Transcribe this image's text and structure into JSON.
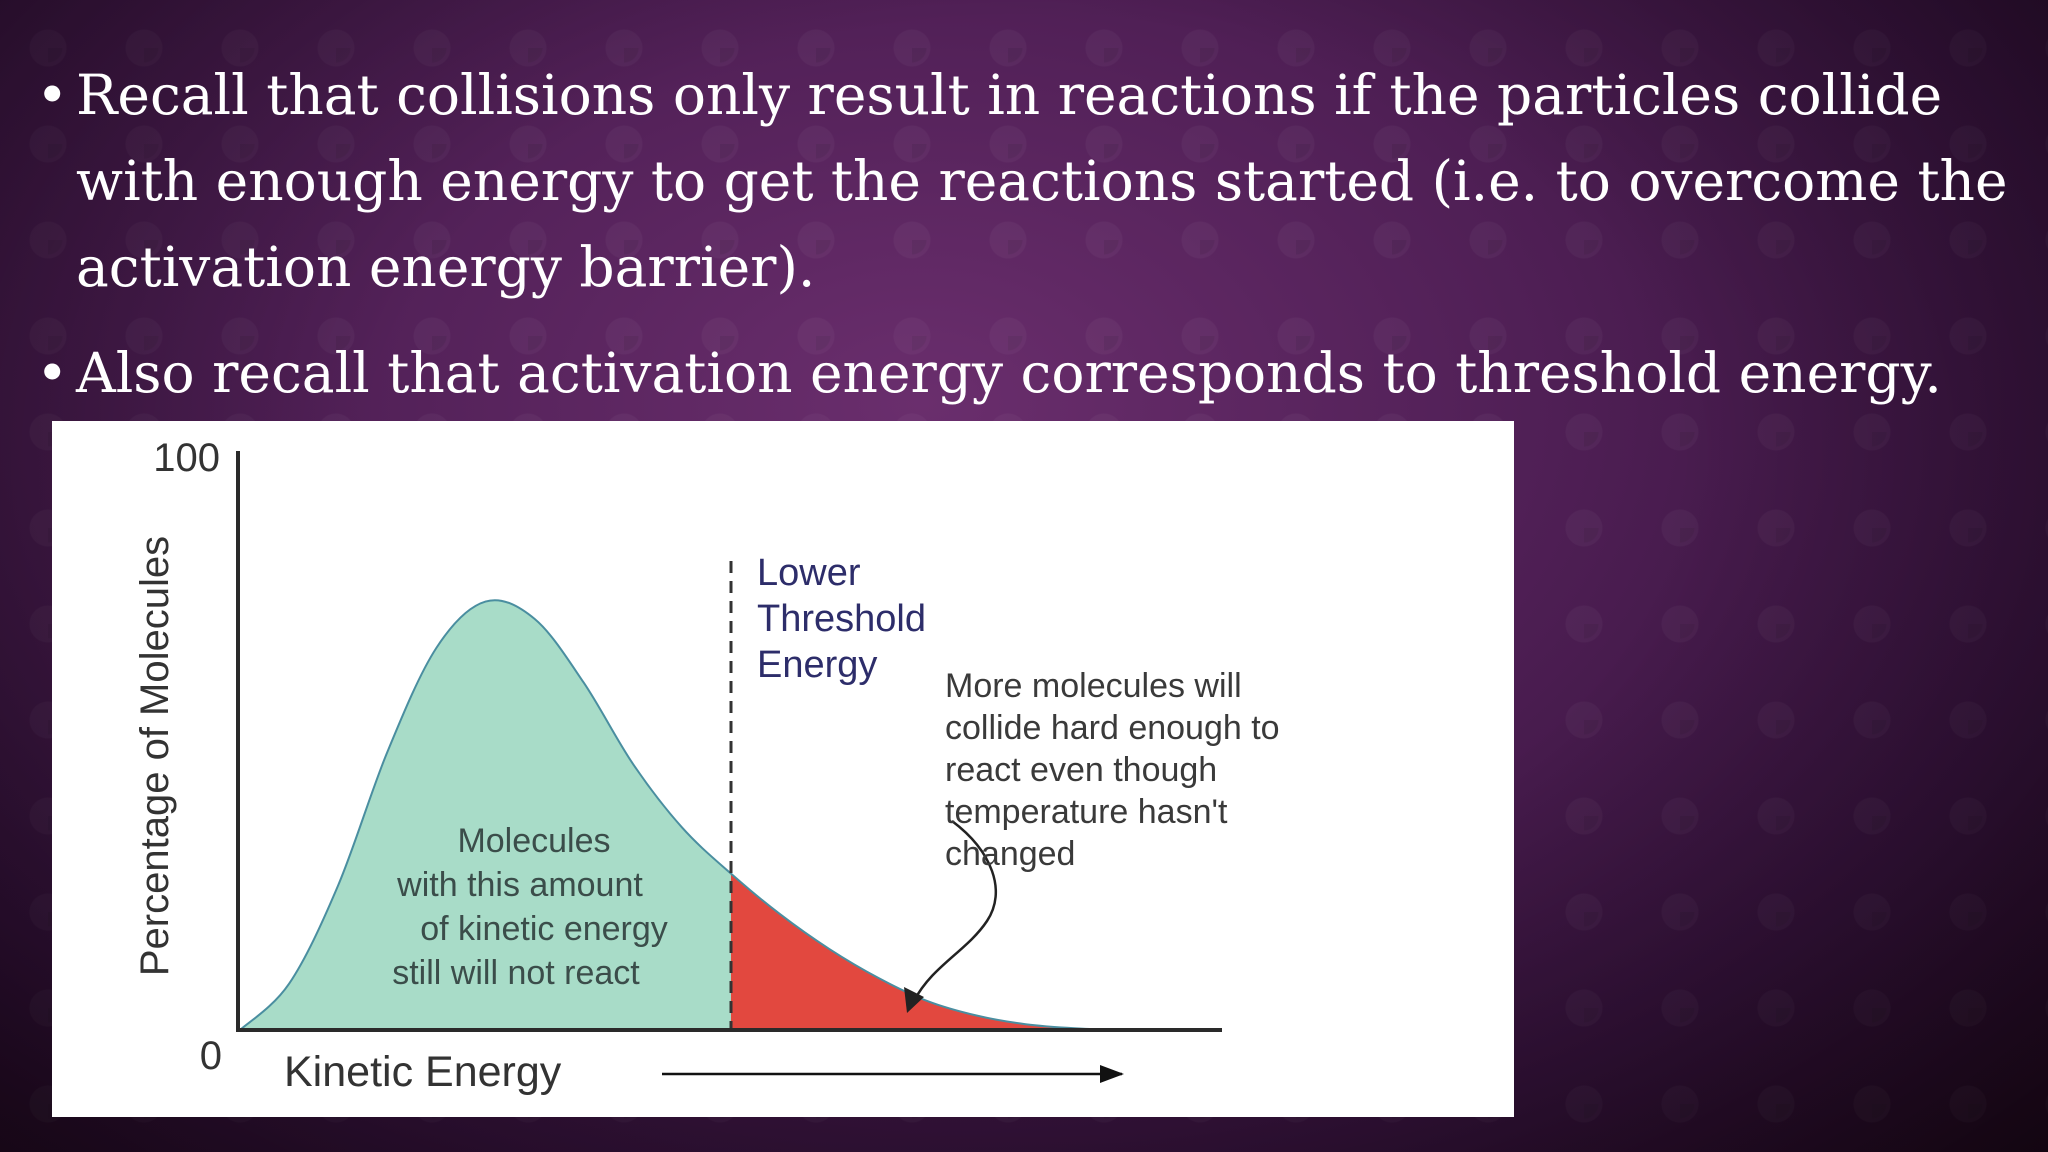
{
  "slide": {
    "bullets": [
      "Recall that collisions only result in reactions if the particles collide with enough energy to get the reactions started (i.e. to overcome the activation energy barrier).",
      "Also recall that activation energy corresponds to threshold energy."
    ]
  },
  "chart_data": {
    "type": "area",
    "xlabel": "Kinetic Energy",
    "ylabel": "Percentage of Molecules",
    "ylim": [
      0,
      100
    ],
    "yticks": [
      "0",
      "100"
    ],
    "grid": false,
    "series": [
      {
        "x": [
          0,
          5,
          10,
          15,
          20,
          25,
          30,
          35,
          40,
          45,
          50,
          55,
          60,
          65,
          70,
          75,
          80,
          85,
          90,
          95,
          100
        ],
        "values": [
          0,
          8,
          25,
          48,
          66,
          74,
          71,
          60,
          46,
          35,
          27,
          20,
          14,
          9,
          5,
          2.5,
          1,
          0.3,
          0,
          0,
          0
        ]
      }
    ],
    "threshold_x": 50,
    "threshold_label": [
      "Lower",
      "Threshold",
      "Energy"
    ],
    "below_threshold_label": [
      "Molecules",
      "with this amount",
      "of kinetic energy",
      "still will not react"
    ],
    "annotation": [
      "More molecules will",
      "collide hard enough to",
      "react even though",
      "temperature hasn't",
      "changed"
    ],
    "colors": {
      "below": "#a8dcc8",
      "above": "#e2483f",
      "curve": "#4a8ea0",
      "axis": "#2a2a2a",
      "threshold_text": "#2d2d6a",
      "label_text": "#3a3a3a"
    }
  }
}
